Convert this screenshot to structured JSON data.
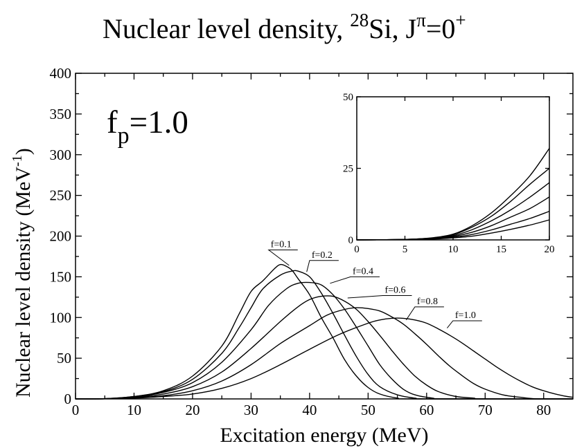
{
  "chart_data": {
    "type": "line",
    "title": {
      "main": "Nuclear level density, ",
      "mass_number": "28",
      "element": "Si, J",
      "parity_sup": "π",
      "equals": "=0",
      "sign_sup": "+"
    },
    "xlabel": "Excitation energy (MeV)",
    "ylabel": {
      "main": "Nuclear level density (MeV",
      "sup": "-1",
      "close": ")"
    },
    "annotation": {
      "f": "f",
      "sub": "p",
      "value": "=1.0"
    },
    "xlim": [
      0,
      85
    ],
    "ylim": [
      0,
      400
    ],
    "xticks": [
      0,
      10,
      20,
      30,
      40,
      50,
      60,
      70,
      80
    ],
    "yticks": [
      0,
      50,
      100,
      150,
      200,
      250,
      300,
      350,
      400
    ],
    "series": [
      {
        "name": "f=0.1",
        "points": [
          [
            0,
            0
          ],
          [
            5,
            0.3
          ],
          [
            10,
            3
          ],
          [
            15,
            10
          ],
          [
            20,
            28
          ],
          [
            25,
            65
          ],
          [
            28,
            105
          ],
          [
            30,
            132
          ],
          [
            32,
            145
          ],
          [
            34,
            160
          ],
          [
            35,
            165
          ],
          [
            36,
            163
          ],
          [
            37,
            158
          ],
          [
            38,
            148
          ],
          [
            40,
            128
          ],
          [
            42,
            100
          ],
          [
            44,
            75
          ],
          [
            46,
            48
          ],
          [
            48,
            28
          ],
          [
            50,
            14
          ],
          [
            52,
            6
          ],
          [
            55,
            1
          ],
          [
            58,
            0
          ],
          [
            85,
            0
          ]
        ]
      },
      {
        "name": "f=0.2",
        "points": [
          [
            0,
            0
          ],
          [
            5,
            0.3
          ],
          [
            10,
            3
          ],
          [
            15,
            9
          ],
          [
            20,
            24
          ],
          [
            25,
            56
          ],
          [
            28,
            88
          ],
          [
            30,
            112
          ],
          [
            32,
            135
          ],
          [
            35,
            152
          ],
          [
            37,
            157
          ],
          [
            38,
            157
          ],
          [
            40,
            150
          ],
          [
            42,
            130
          ],
          [
            44,
            105
          ],
          [
            46,
            78
          ],
          [
            48,
            52
          ],
          [
            50,
            30
          ],
          [
            52,
            15
          ],
          [
            55,
            5
          ],
          [
            58,
            1
          ],
          [
            61,
            0
          ],
          [
            85,
            0
          ]
        ]
      },
      {
        "name": "f=0.4",
        "points": [
          [
            0,
            0
          ],
          [
            5,
            0.2
          ],
          [
            10,
            2.5
          ],
          [
            15,
            8
          ],
          [
            20,
            20
          ],
          [
            25,
            45
          ],
          [
            30,
            85
          ],
          [
            33,
            115
          ],
          [
            36,
            135
          ],
          [
            38,
            142
          ],
          [
            40,
            143
          ],
          [
            42,
            140
          ],
          [
            44,
            128
          ],
          [
            46,
            110
          ],
          [
            48,
            88
          ],
          [
            50,
            65
          ],
          [
            52,
            42
          ],
          [
            54,
            25
          ],
          [
            56,
            12
          ],
          [
            58,
            5
          ],
          [
            61,
            1
          ],
          [
            64,
            0
          ],
          [
            85,
            0
          ]
        ]
      },
      {
        "name": "f=0.6",
        "points": [
          [
            0,
            0
          ],
          [
            5,
            0.2
          ],
          [
            10,
            2
          ],
          [
            15,
            6
          ],
          [
            20,
            15
          ],
          [
            25,
            33
          ],
          [
            30,
            62
          ],
          [
            35,
            95
          ],
          [
            38,
            113
          ],
          [
            40,
            122
          ],
          [
            42,
            126
          ],
          [
            44,
            126
          ],
          [
            46,
            120
          ],
          [
            48,
            110
          ],
          [
            50,
            95
          ],
          [
            52,
            78
          ],
          [
            54,
            60
          ],
          [
            56,
            43
          ],
          [
            58,
            28
          ],
          [
            60,
            17
          ],
          [
            62,
            9
          ],
          [
            65,
            3
          ],
          [
            68,
            1
          ],
          [
            70,
            0
          ],
          [
            85,
            0
          ]
        ]
      },
      {
        "name": "f=0.8",
        "points": [
          [
            0,
            0
          ],
          [
            5,
            0.2
          ],
          [
            10,
            1.5
          ],
          [
            15,
            4
          ],
          [
            20,
            10
          ],
          [
            25,
            22
          ],
          [
            30,
            42
          ],
          [
            35,
            68
          ],
          [
            40,
            90
          ],
          [
            43,
            103
          ],
          [
            46,
            110
          ],
          [
            48,
            112
          ],
          [
            50,
            111
          ],
          [
            52,
            108
          ],
          [
            54,
            101
          ],
          [
            56,
            92
          ],
          [
            58,
            80
          ],
          [
            60,
            67
          ],
          [
            62,
            53
          ],
          [
            64,
            40
          ],
          [
            66,
            29
          ],
          [
            68,
            19
          ],
          [
            70,
            12
          ],
          [
            73,
            5
          ],
          [
            76,
            2
          ],
          [
            79,
            0
          ],
          [
            85,
            0
          ]
        ]
      },
      {
        "name": "f=1.0",
        "points": [
          [
            0,
            0
          ],
          [
            5,
            0.2
          ],
          [
            10,
            1
          ],
          [
            15,
            3
          ],
          [
            20,
            6
          ],
          [
            25,
            13
          ],
          [
            30,
            25
          ],
          [
            35,
            42
          ],
          [
            40,
            61
          ],
          [
            45,
            79
          ],
          [
            50,
            93
          ],
          [
            52,
            97
          ],
          [
            54,
            99
          ],
          [
            56,
            99
          ],
          [
            58,
            97
          ],
          [
            60,
            93
          ],
          [
            62,
            86
          ],
          [
            64,
            78
          ],
          [
            66,
            69
          ],
          [
            68,
            59
          ],
          [
            70,
            49
          ],
          [
            72,
            39
          ],
          [
            74,
            30
          ],
          [
            76,
            22
          ],
          [
            78,
            15
          ],
          [
            80,
            10
          ],
          [
            82,
            6
          ],
          [
            84,
            3
          ],
          [
            85,
            2
          ]
        ]
      }
    ],
    "inset": {
      "xlim": [
        0,
        20
      ],
      "ylim": [
        0,
        50
      ],
      "xticks": [
        0,
        5,
        10,
        15,
        20
      ],
      "yticks": [
        0,
        25,
        50
      ],
      "series": [
        {
          "name": "f=0.1",
          "points": [
            [
              0,
              0
            ],
            [
              4,
              0.1
            ],
            [
              6,
              0.3
            ],
            [
              8,
              0.8
            ],
            [
              10,
              2
            ],
            [
              12,
              5
            ],
            [
              14,
              9.5
            ],
            [
              16,
              15.5
            ],
            [
              18,
              22.5
            ],
            [
              20,
              32
            ]
          ]
        },
        {
          "name": "f=0.2",
          "points": [
            [
              0,
              0
            ],
            [
              4,
              0.1
            ],
            [
              6,
              0.3
            ],
            [
              8,
              0.7
            ],
            [
              10,
              1.8
            ],
            [
              12,
              4.5
            ],
            [
              14,
              8.3
            ],
            [
              16,
              13.5
            ],
            [
              18,
              19.5
            ],
            [
              20,
              25
            ]
          ]
        },
        {
          "name": "f=0.4",
          "points": [
            [
              0,
              0
            ],
            [
              4,
              0.1
            ],
            [
              6,
              0.3
            ],
            [
              8,
              0.6
            ],
            [
              10,
              1.5
            ],
            [
              12,
              3.6
            ],
            [
              14,
              6.7
            ],
            [
              16,
              10.5
            ],
            [
              18,
              15
            ],
            [
              20,
              20
            ]
          ]
        },
        {
          "name": "f=0.6",
          "points": [
            [
              0,
              0
            ],
            [
              4,
              0.1
            ],
            [
              6,
              0.2
            ],
            [
              8,
              0.5
            ],
            [
              10,
              1.2
            ],
            [
              12,
              2.7
            ],
            [
              14,
              5
            ],
            [
              16,
              8
            ],
            [
              18,
              11
            ],
            [
              20,
              15
            ]
          ]
        },
        {
          "name": "f=0.8",
          "points": [
            [
              0,
              0
            ],
            [
              4,
              0.1
            ],
            [
              6,
              0.2
            ],
            [
              8,
              0.4
            ],
            [
              10,
              0.9
            ],
            [
              12,
              1.9
            ],
            [
              14,
              3.5
            ],
            [
              16,
              5.5
            ],
            [
              18,
              7.5
            ],
            [
              20,
              10
            ]
          ]
        },
        {
          "name": "f=1.0",
          "points": [
            [
              0,
              0
            ],
            [
              4,
              0.1
            ],
            [
              6,
              0.1
            ],
            [
              8,
              0.3
            ],
            [
              10,
              0.7
            ],
            [
              12,
              1.3
            ],
            [
              14,
              2.4
            ],
            [
              16,
              3.7
            ],
            [
              18,
              5.2
            ],
            [
              20,
              7
            ]
          ]
        }
      ]
    }
  }
}
